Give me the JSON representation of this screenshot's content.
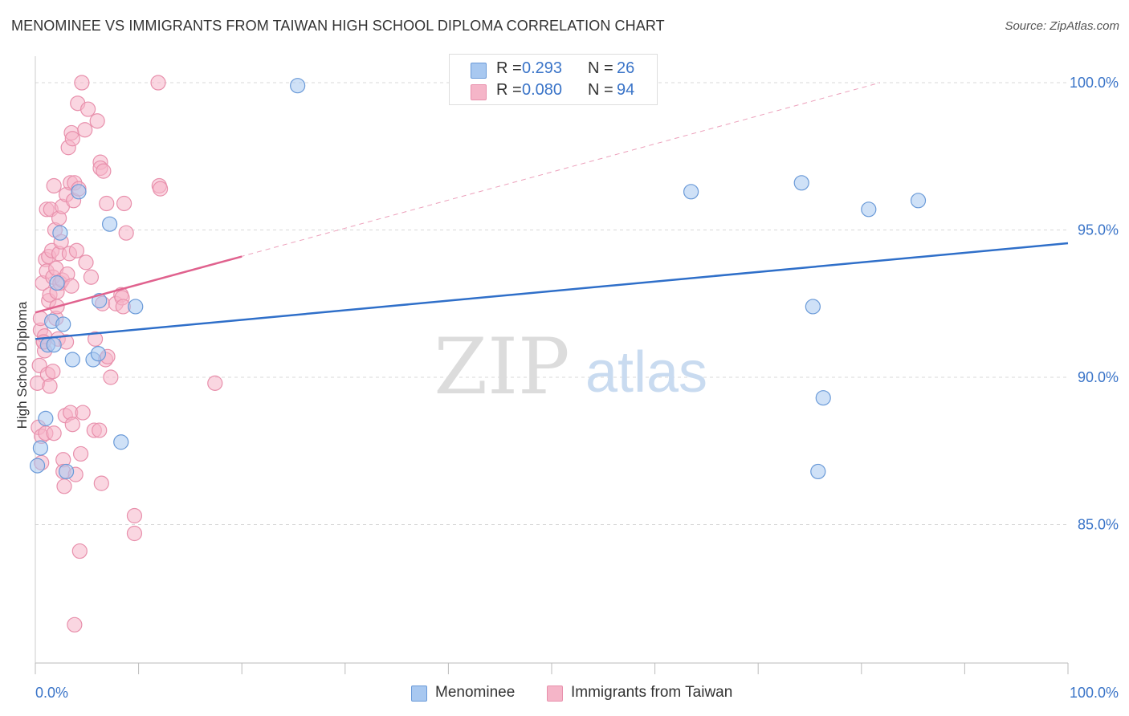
{
  "title": "MENOMINEE VS IMMIGRANTS FROM TAIWAN HIGH SCHOOL DIPLOMA CORRELATION CHART",
  "source": "Source: ZipAtlas.com",
  "watermark": {
    "zip": "ZIP",
    "atlas": "atlas"
  },
  "legend_top": [
    {
      "r_label": "R =",
      "r_value": "0.293",
      "n_label": "N =",
      "n_value": "26",
      "color": "#a8c8f0"
    },
    {
      "r_label": "R =",
      "r_value": "0.080",
      "n_label": "N =",
      "n_value": "94",
      "color": "#f5b5c8"
    }
  ],
  "legend_bottom": [
    {
      "label": "Menominee",
      "color": "#a8c8f0"
    },
    {
      "label": "Immigrants from Taiwan",
      "color": "#f5b5c8"
    }
  ],
  "colors": {
    "menominee_fill": "#a8c8f0",
    "menominee_stroke": "#6a9ad8",
    "menominee_line": "#2f6fc9",
    "taiwan_fill": "#f5b5c8",
    "taiwan_stroke": "#e890ac",
    "taiwan_line": "#e0628e",
    "tick_label": "#3a74c8",
    "grid": "#d8d8d8"
  },
  "chart_data": {
    "type": "scatter",
    "title": "MENOMINEE VS IMMIGRANTS FROM TAIWAN HIGH SCHOOL DIPLOMA CORRELATION CHART",
    "xlabel": "",
    "ylabel": "High School Diploma",
    "xlim": [
      0,
      100
    ],
    "ylim": [
      80.3,
      100.9
    ],
    "x_ticks": [
      "0.0%",
      "100.0%"
    ],
    "y_ticks": [
      {
        "value": 100,
        "label": "100.0%"
      },
      {
        "value": 95,
        "label": "95.0%"
      },
      {
        "value": 90,
        "label": "90.0%"
      },
      {
        "value": 85,
        "label": "85.0%"
      }
    ],
    "grid": "horizontal dashed",
    "legend": "bottom-center",
    "series": [
      {
        "name": "Menominee",
        "r": 0.293,
        "n": 26,
        "trend": {
          "x0": 0,
          "y0": 91.3,
          "x1": 100,
          "y1": 94.55
        },
        "points": [
          [
            0.2,
            87.0
          ],
          [
            0.5,
            87.6
          ],
          [
            1.0,
            88.6
          ],
          [
            1.2,
            91.1
          ],
          [
            1.6,
            91.9
          ],
          [
            1.8,
            91.1
          ],
          [
            2.1,
            93.2
          ],
          [
            2.4,
            94.9
          ],
          [
            2.7,
            91.8
          ],
          [
            3.0,
            86.8
          ],
          [
            3.6,
            90.6
          ],
          [
            4.2,
            96.3
          ],
          [
            5.6,
            90.6
          ],
          [
            6.1,
            90.8
          ],
          [
            6.2,
            92.6
          ],
          [
            7.2,
            95.2
          ],
          [
            8.3,
            87.8
          ],
          [
            9.7,
            92.4
          ],
          [
            25.4,
            99.9
          ],
          [
            63.5,
            96.3
          ],
          [
            74.2,
            96.6
          ],
          [
            76.3,
            89.3
          ],
          [
            75.3,
            92.4
          ],
          [
            75.8,
            86.8
          ],
          [
            80.7,
            95.7
          ],
          [
            85.5,
            96.0
          ]
        ]
      },
      {
        "name": "Immigrants from Taiwan",
        "r": 0.08,
        "n": 94,
        "trend": {
          "x0": 0,
          "y0": 92.2,
          "x1": 20,
          "y1": 94.1
        },
        "trend_dashed": {
          "x0": 0,
          "y0": 92.2,
          "x1": 81.8,
          "y1": 100.0
        },
        "points": [
          [
            0.2,
            89.8
          ],
          [
            0.3,
            88.3
          ],
          [
            0.4,
            90.4
          ],
          [
            0.5,
            91.6
          ],
          [
            0.5,
            92.0
          ],
          [
            0.6,
            88.0
          ],
          [
            0.6,
            87.1
          ],
          [
            0.7,
            93.2
          ],
          [
            0.8,
            91.2
          ],
          [
            0.9,
            90.9
          ],
          [
            0.9,
            91.4
          ],
          [
            1.0,
            94.0
          ],
          [
            1.0,
            88.1
          ],
          [
            1.1,
            93.6
          ],
          [
            1.1,
            95.7
          ],
          [
            1.2,
            90.1
          ],
          [
            1.3,
            94.1
          ],
          [
            1.3,
            92.6
          ],
          [
            1.4,
            89.7
          ],
          [
            1.4,
            92.8
          ],
          [
            1.5,
            95.7
          ],
          [
            1.6,
            94.3
          ],
          [
            1.7,
            93.4
          ],
          [
            1.7,
            90.2
          ],
          [
            1.8,
            88.1
          ],
          [
            1.8,
            96.5
          ],
          [
            1.9,
            95.0
          ],
          [
            2.0,
            92.0
          ],
          [
            2.0,
            93.7
          ],
          [
            2.1,
            92.4
          ],
          [
            2.1,
            92.9
          ],
          [
            2.2,
            91.3
          ],
          [
            2.3,
            94.2
          ],
          [
            2.3,
            95.4
          ],
          [
            2.4,
            93.2
          ],
          [
            2.5,
            94.6
          ],
          [
            2.6,
            95.8
          ],
          [
            2.6,
            93.3
          ],
          [
            2.7,
            87.2
          ],
          [
            2.7,
            86.8
          ],
          [
            2.8,
            86.3
          ],
          [
            2.9,
            88.7
          ],
          [
            3.0,
            96.2
          ],
          [
            3.0,
            91.2
          ],
          [
            3.1,
            93.5
          ],
          [
            3.2,
            97.8
          ],
          [
            3.3,
            94.2
          ],
          [
            3.4,
            96.6
          ],
          [
            3.4,
            88.8
          ],
          [
            3.5,
            98.3
          ],
          [
            3.5,
            93.1
          ],
          [
            3.6,
            98.1
          ],
          [
            3.6,
            88.4
          ],
          [
            3.7,
            96.0
          ],
          [
            3.8,
            96.6
          ],
          [
            3.8,
            81.6
          ],
          [
            3.9,
            86.7
          ],
          [
            4.0,
            94.3
          ],
          [
            4.1,
            99.3
          ],
          [
            4.2,
            96.4
          ],
          [
            4.3,
            84.1
          ],
          [
            4.4,
            87.4
          ],
          [
            4.5,
            100.0
          ],
          [
            4.6,
            88.8
          ],
          [
            4.8,
            98.4
          ],
          [
            4.9,
            93.9
          ],
          [
            5.1,
            99.1
          ],
          [
            5.4,
            93.4
          ],
          [
            5.7,
            88.2
          ],
          [
            5.8,
            91.3
          ],
          [
            6.0,
            98.7
          ],
          [
            6.2,
            88.2
          ],
          [
            6.3,
            97.3
          ],
          [
            6.3,
            97.1
          ],
          [
            6.4,
            86.4
          ],
          [
            6.5,
            92.5
          ],
          [
            6.6,
            97.0
          ],
          [
            6.8,
            90.6
          ],
          [
            6.9,
            95.9
          ],
          [
            7.0,
            90.7
          ],
          [
            7.3,
            90.0
          ],
          [
            7.8,
            92.5
          ],
          [
            8.3,
            92.8
          ],
          [
            8.4,
            92.7
          ],
          [
            8.5,
            92.4
          ],
          [
            8.6,
            95.9
          ],
          [
            8.8,
            94.9
          ],
          [
            9.6,
            85.3
          ],
          [
            9.6,
            84.7
          ],
          [
            11.9,
            100.0
          ],
          [
            12.0,
            96.5
          ],
          [
            12.1,
            96.4
          ],
          [
            17.4,
            89.8
          ],
          [
            0.8,
            91.2
          ]
        ]
      }
    ]
  }
}
